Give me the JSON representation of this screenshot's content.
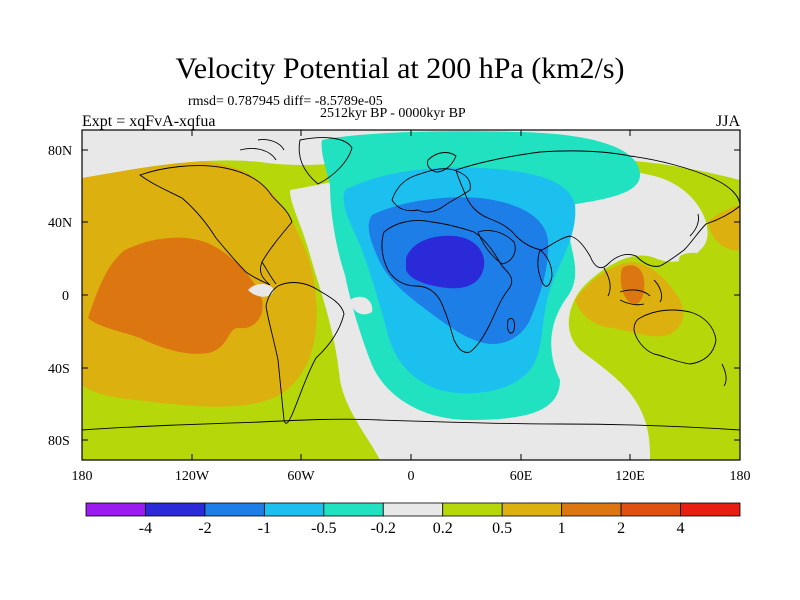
{
  "title": "Velocity Potential at 200 hPa (km2/s)",
  "stats_line": "rmsd= 0.787945 diff= -8.5789e-05",
  "period_line": "2512kyr BP - 0000kyr BP",
  "left_label": "Expt = xqFvA-xqfua",
  "right_label": "JJA",
  "lat_labels": [
    "80N",
    "40N",
    "0",
    "40S",
    "80S"
  ],
  "lon_labels": [
    "180",
    "120W",
    "60W",
    "0",
    "60E",
    "120E",
    "180"
  ],
  "colorbar": {
    "colors": [
      "#9a1cf0",
      "#2a2ad8",
      "#1c7ee6",
      "#1cc0ee",
      "#20e2c0",
      "#e8e8e8",
      "#b6d80a",
      "#dcb00e",
      "#dc7610",
      "#e05010",
      "#e81e10"
    ],
    "labels": [
      "-4",
      "-2",
      "-1",
      "-0.5",
      "-0.2",
      "0.2",
      "0.5",
      "1",
      "2",
      "4"
    ]
  }
}
